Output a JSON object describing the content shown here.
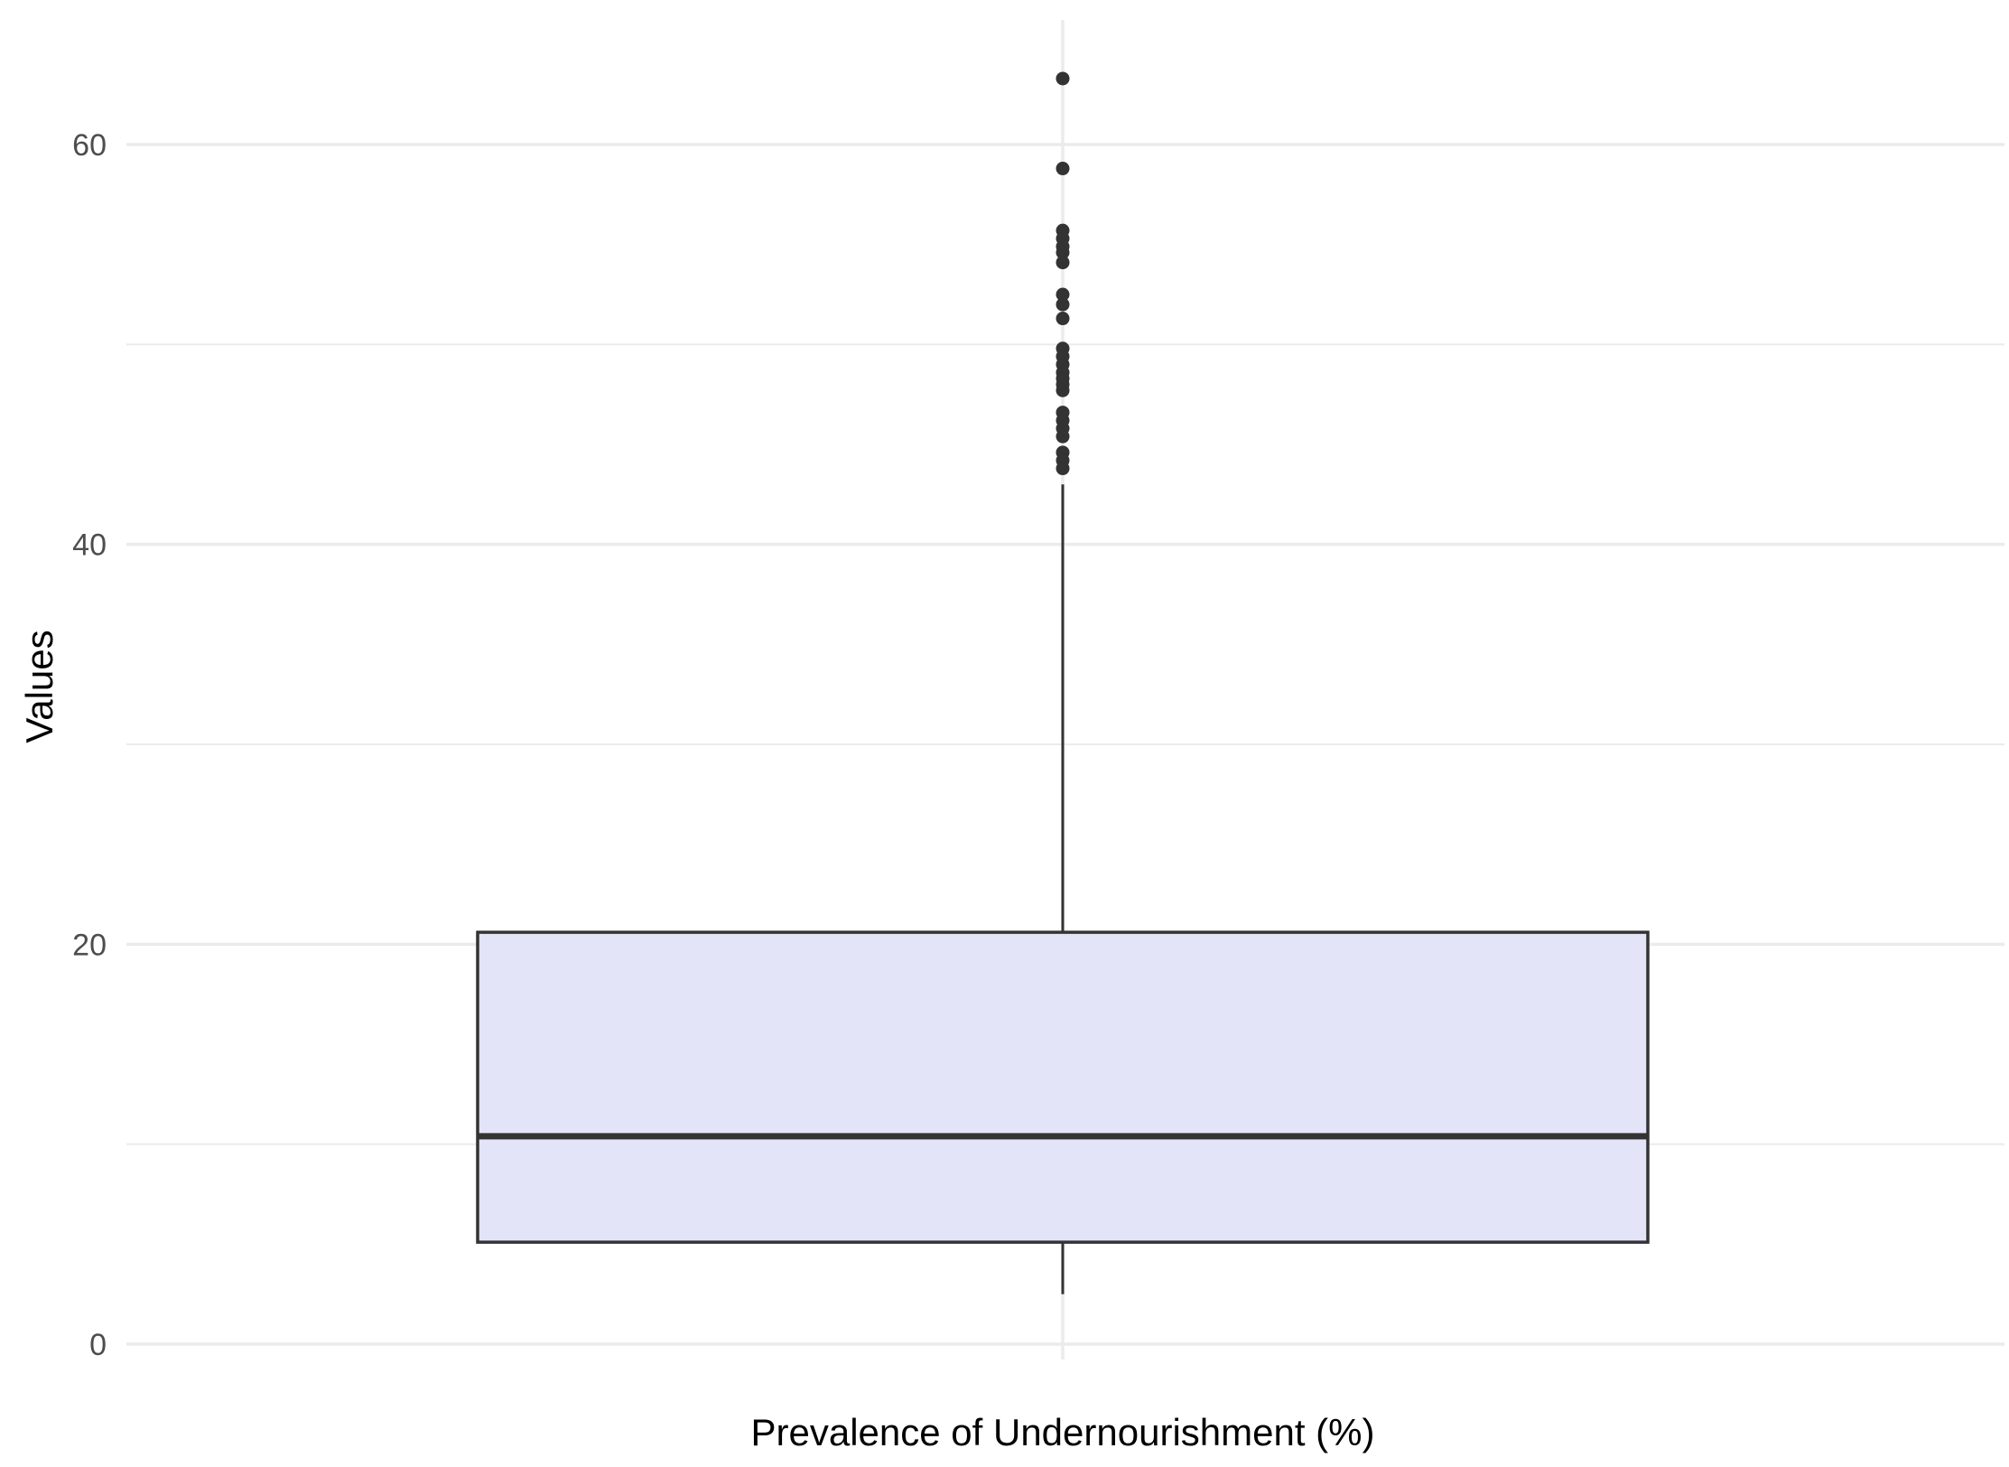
{
  "chart_data": {
    "type": "boxplot",
    "xlabel": "Prevalence of Undernourishment (%)",
    "ylabel": "Values",
    "ylim": [
      0,
      66
    ],
    "y_ticks": [
      0,
      20,
      40,
      60
    ],
    "y_tick_labels": [
      "0",
      "20",
      "40",
      "60"
    ],
    "grid": true,
    "legend": "none",
    "box": {
      "whisker_low": 2.5,
      "q1": 5.1,
      "median": 10.4,
      "q3": 20.6,
      "whisker_high": 43.0,
      "outliers": [
        63.3,
        58.8,
        55.7,
        55.3,
        54.9,
        54.6,
        54.1,
        52.5,
        52.0,
        51.3,
        49.8,
        49.4,
        49.0,
        48.6,
        48.3,
        48.0,
        47.7,
        46.6,
        46.2,
        45.8,
        45.4,
        44.6,
        44.2,
        43.8
      ]
    },
    "colors": {
      "box_fill": "#e4e4f8",
      "box_stroke": "#333333",
      "grid": "#ebebeb",
      "outlier": "#333333"
    }
  }
}
